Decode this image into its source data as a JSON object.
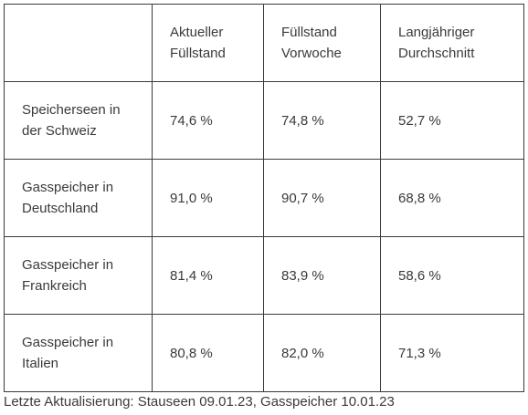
{
  "table": {
    "headers": [
      "",
      "Aktueller\nFüllstand",
      "Füllstand\nVorwoche",
      "Langjähriger\nDurchschnitt"
    ],
    "rows": [
      {
        "label": "Speicherseen in\nder Schweiz",
        "current": "74,6 %",
        "previous_week": "74,8 %",
        "long_term_avg": "52,7 %"
      },
      {
        "label": "Gasspeicher in\nDeutschland",
        "current": "91,0 %",
        "previous_week": "90,7 %",
        "long_term_avg": "68,8 %"
      },
      {
        "label": "Gasspeicher in\nFrankreich",
        "current": "81,4 %",
        "previous_week": "83,9 %",
        "long_term_avg": "58,6 %"
      },
      {
        "label": "Gasspeicher in\nItalien",
        "current": "80,8 %",
        "previous_week": "82,0 %",
        "long_term_avg": "71,3 %"
      }
    ]
  },
  "footnote": "Letzte Aktualisierung: Stauseen 09.01.23, Gasspeicher 10.01.23"
}
